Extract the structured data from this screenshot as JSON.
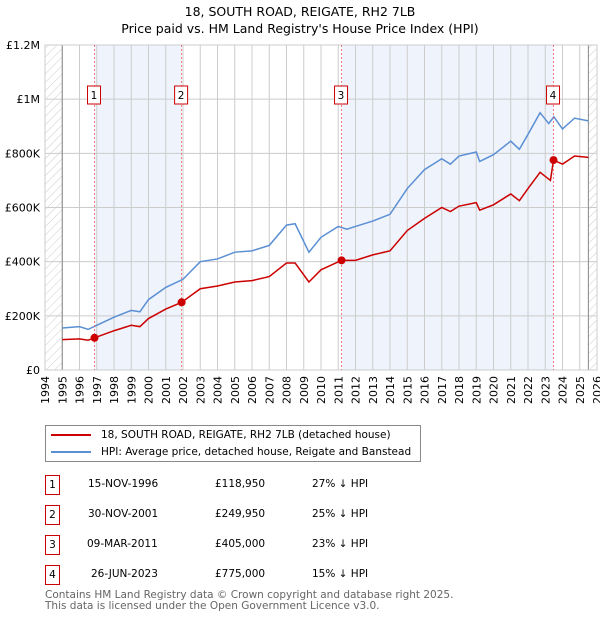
{
  "title": "18, SOUTH ROAD, REIGATE, RH2 7LB",
  "subtitle": "Price paid vs. HM Land Registry's House Price Index (HPI)",
  "chart_data": {
    "type": "line",
    "xlim": [
      1994,
      2026
    ],
    "ylim": [
      0,
      1200000
    ],
    "yticks": [
      {
        "v": 0,
        "label": "£0"
      },
      {
        "v": 200000,
        "label": "£200K"
      },
      {
        "v": 400000,
        "label": "£400K"
      },
      {
        "v": 600000,
        "label": "£600K"
      },
      {
        "v": 800000,
        "label": "£800K"
      },
      {
        "v": 1000000,
        "label": "£1M"
      },
      {
        "v": 1200000,
        "label": "£1.2M"
      }
    ],
    "xticks": [
      "1994",
      "1995",
      "1996",
      "1997",
      "1998",
      "1999",
      "2000",
      "2001",
      "2002",
      "2003",
      "2004",
      "2005",
      "2006",
      "2007",
      "2008",
      "2009",
      "2010",
      "2011",
      "2012",
      "2013",
      "2014",
      "2015",
      "2016",
      "2017",
      "2018",
      "2019",
      "2020",
      "2021",
      "2022",
      "2023",
      "2024",
      "2025",
      "2026"
    ],
    "hatch_before": 1995,
    "hatch_after": 2025.5,
    "series": [
      {
        "name": "HPI: Average price, detached house, Reigate and Banstead",
        "color": "#5b8fd4",
        "points": [
          [
            1995,
            155000
          ],
          [
            1996,
            160000
          ],
          [
            1996.5,
            150000
          ],
          [
            1997,
            165000
          ],
          [
            1998,
            195000
          ],
          [
            1999,
            220000
          ],
          [
            1999.5,
            215000
          ],
          [
            2000,
            260000
          ],
          [
            2001,
            305000
          ],
          [
            2002,
            335000
          ],
          [
            2003,
            400000
          ],
          [
            2004,
            410000
          ],
          [
            2005,
            435000
          ],
          [
            2006,
            440000
          ],
          [
            2007,
            460000
          ],
          [
            2008,
            535000
          ],
          [
            2008.5,
            540000
          ],
          [
            2009.3,
            435000
          ],
          [
            2010,
            490000
          ],
          [
            2011,
            530000
          ],
          [
            2011.5,
            520000
          ],
          [
            2012,
            530000
          ],
          [
            2013,
            550000
          ],
          [
            2014,
            575000
          ],
          [
            2015,
            670000
          ],
          [
            2016,
            740000
          ],
          [
            2017,
            780000
          ],
          [
            2017.5,
            760000
          ],
          [
            2018,
            790000
          ],
          [
            2019,
            805000
          ],
          [
            2019.2,
            770000
          ],
          [
            2020,
            795000
          ],
          [
            2021,
            845000
          ],
          [
            2021.5,
            815000
          ],
          [
            2022,
            870000
          ],
          [
            2022.7,
            950000
          ],
          [
            2023.2,
            910000
          ],
          [
            2023.5,
            935000
          ],
          [
            2024,
            890000
          ],
          [
            2024.7,
            930000
          ],
          [
            2025.5,
            920000
          ]
        ]
      },
      {
        "name": "18, SOUTH ROAD, REIGATE, RH2 7LB (detached house)",
        "color": "#cc0000",
        "points": [
          [
            1995,
            112000
          ],
          [
            1996,
            115000
          ],
          [
            1996.5,
            110000
          ],
          [
            1996.87,
            118950
          ],
          [
            1998,
            145000
          ],
          [
            1999,
            165000
          ],
          [
            1999.5,
            160000
          ],
          [
            2000,
            190000
          ],
          [
            2001,
            225000
          ],
          [
            2001.92,
            249950
          ],
          [
            2003,
            300000
          ],
          [
            2004,
            310000
          ],
          [
            2005,
            325000
          ],
          [
            2006,
            330000
          ],
          [
            2007,
            345000
          ],
          [
            2008,
            395000
          ],
          [
            2008.5,
            395000
          ],
          [
            2009.3,
            325000
          ],
          [
            2010,
            370000
          ],
          [
            2011.19,
            405000
          ],
          [
            2012,
            405000
          ],
          [
            2013,
            425000
          ],
          [
            2014,
            440000
          ],
          [
            2015,
            515000
          ],
          [
            2016,
            560000
          ],
          [
            2017,
            600000
          ],
          [
            2017.5,
            585000
          ],
          [
            2018,
            605000
          ],
          [
            2019,
            618000
          ],
          [
            2019.2,
            590000
          ],
          [
            2020,
            610000
          ],
          [
            2021,
            650000
          ],
          [
            2021.5,
            625000
          ],
          [
            2022,
            670000
          ],
          [
            2022.7,
            730000
          ],
          [
            2023.3,
            700000
          ],
          [
            2023.48,
            775000
          ],
          [
            2024,
            760000
          ],
          [
            2024.7,
            790000
          ],
          [
            2025.5,
            785000
          ]
        ]
      }
    ],
    "sales": [
      {
        "n": "1",
        "x": 1996.87,
        "price": 118950,
        "date": "15-NOV-1996",
        "price_label": "£118,950",
        "hpi": "27% ↓ HPI"
      },
      {
        "n": "2",
        "x": 2001.92,
        "price": 249950,
        "date": "30-NOV-2001",
        "price_label": "£249,950",
        "hpi": "25% ↓ HPI"
      },
      {
        "n": "3",
        "x": 2011.19,
        "price": 405000,
        "date": "09-MAR-2011",
        "price_label": "£405,000",
        "hpi": "23% ↓ HPI"
      },
      {
        "n": "4",
        "x": 2023.48,
        "price": 775000,
        "date": "26-JUN-2023",
        "price_label": "£775,000",
        "hpi": "15% ↓ HPI"
      }
    ]
  },
  "legend": {
    "red": "18, SOUTH ROAD, REIGATE, RH2 7LB (detached house)",
    "blue": "HPI: Average price, detached house, Reigate and Banstead"
  },
  "footer": {
    "line1": "Contains HM Land Registry data © Crown copyright and database right 2025.",
    "line2": "This data is licensed under the Open Government Licence v3.0."
  }
}
